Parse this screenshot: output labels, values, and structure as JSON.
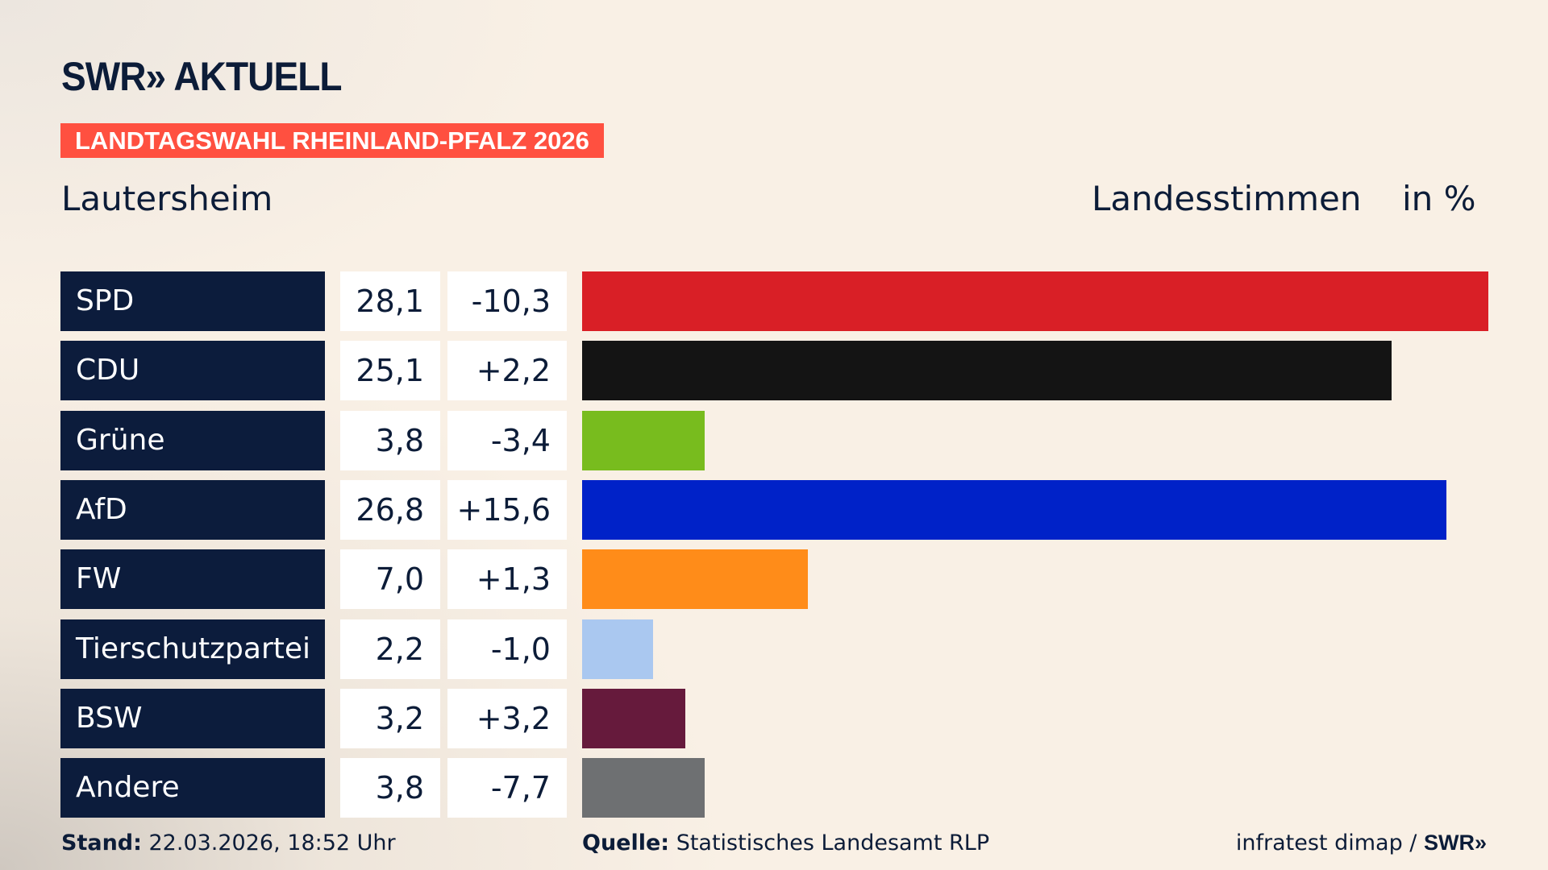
{
  "header": {
    "logo": "SWR» AKTUELL",
    "badge": "LANDTAGSWAHL RHEINLAND-PFALZ 2026",
    "place": "Lautersheim",
    "measure": "Landesstimmen",
    "unit": "in %"
  },
  "chart_data": {
    "type": "bar",
    "orientation": "horizontal",
    "categories": [
      "SPD",
      "CDU",
      "Grüne",
      "AfD",
      "FW",
      "Tierschutzpartei",
      "BSW",
      "Andere"
    ],
    "values": [
      28.1,
      25.1,
      3.8,
      26.8,
      7.0,
      2.2,
      3.2,
      3.8
    ],
    "value_labels": [
      "28,1",
      "25,1",
      "3,8",
      "26,8",
      "7,0",
      "2,2",
      "3,2",
      "3,8"
    ],
    "change_labels": [
      "-10,3",
      "+2,2",
      "-3,4",
      "+15,6",
      "+1,3",
      "-1,0",
      "+3,2",
      "-7,7"
    ],
    "colors": [
      "#d91f26",
      "#141414",
      "#78bc1e",
      "#0022c8",
      "#ff8c19",
      "#aac8f0",
      "#661a3c",
      "#6e7072"
    ],
    "grid": false
  },
  "footer": {
    "stand_label": "Stand:",
    "stand_value": " 22.03.2026, 18:52 Uhr",
    "source_label": "Quelle:",
    "source_value": " Statistisches Landesamt RLP",
    "credit": "infratest dimap / ",
    "credit_logo": "SWR»"
  }
}
